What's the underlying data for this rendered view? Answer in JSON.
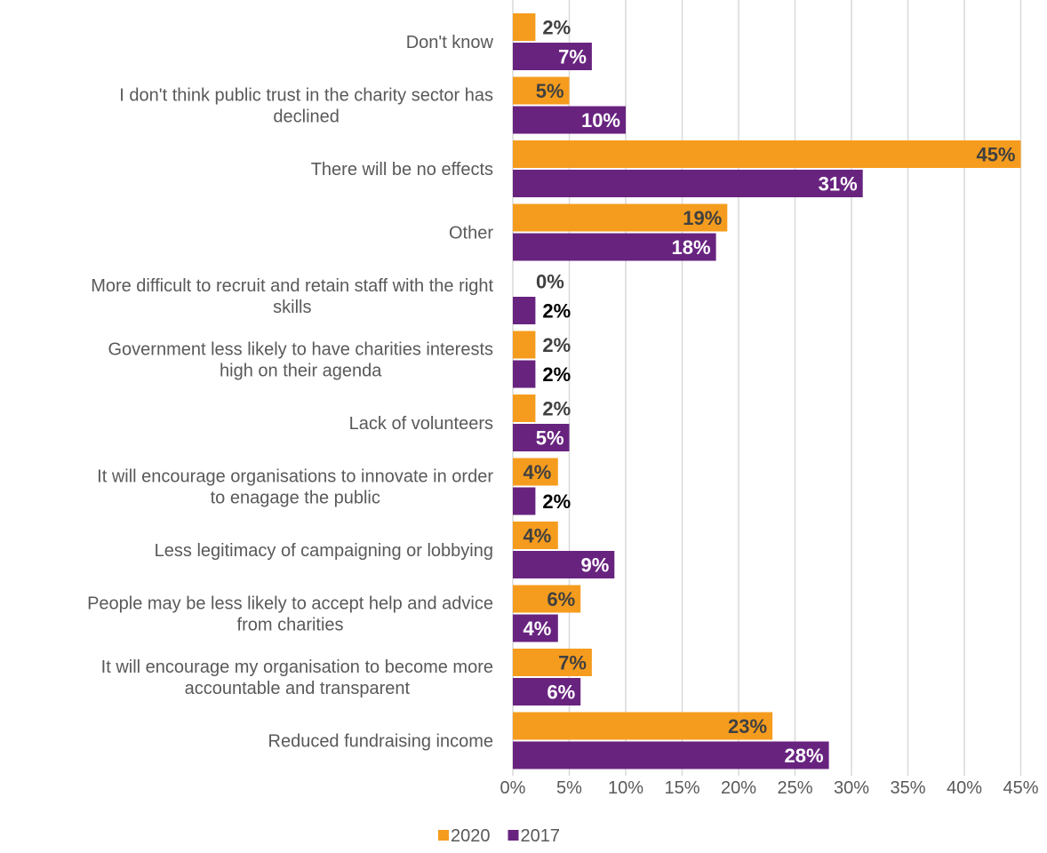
{
  "chart_data": {
    "type": "bar",
    "orientation": "horizontal",
    "title": "",
    "xlabel": "",
    "ylabel": "",
    "xlim": [
      0,
      45
    ],
    "xticks": [
      0,
      5,
      10,
      15,
      20,
      25,
      30,
      35,
      40,
      45
    ],
    "xtick_labels": [
      "0%",
      "5%",
      "10%",
      "15%",
      "20%",
      "25%",
      "30%",
      "35%",
      "40%",
      "45%"
    ],
    "grid": "vertical",
    "legend_position": "bottom",
    "categories": [
      [
        "Don't know"
      ],
      [
        "I don't think public trust in the charity sector has",
        "declined"
      ],
      [
        "There will be no effects"
      ],
      [
        "Other"
      ],
      [
        "More difficult to recruit and retain staff with the right",
        "skills"
      ],
      [
        "Government less likely to have charities interests",
        "high on their agenda"
      ],
      [
        "Lack of volunteers"
      ],
      [
        "It will encourage organisations to innovate in order",
        "to enagage the public"
      ],
      [
        "Less legitimacy of campaigning or lobbying"
      ],
      [
        "People may be less likely to accept help and advice",
        "from charities"
      ],
      [
        "It will encourage my organisation to become more",
        "accountable and transparent"
      ],
      [
        "Reduced fundraising income"
      ]
    ],
    "series": [
      {
        "name": "2020",
        "color": "#f59c1e",
        "values": [
          2,
          5,
          45,
          19,
          0,
          2,
          2,
          4,
          4,
          6,
          7,
          23
        ],
        "labels": [
          "2%",
          "5%",
          "45%",
          "19%",
          "0%",
          "2%",
          "2%",
          "4%",
          "4%",
          "6%",
          "7%",
          "23%"
        ]
      },
      {
        "name": "2017",
        "color": "#68237f",
        "values": [
          7,
          10,
          31,
          18,
          2,
          2,
          5,
          2,
          9,
          4,
          6,
          28
        ],
        "labels": [
          "7%",
          "10%",
          "31%",
          "18%",
          "2%",
          "2%",
          "5%",
          "2%",
          "9%",
          "4%",
          "6%",
          "28%"
        ]
      }
    ]
  }
}
